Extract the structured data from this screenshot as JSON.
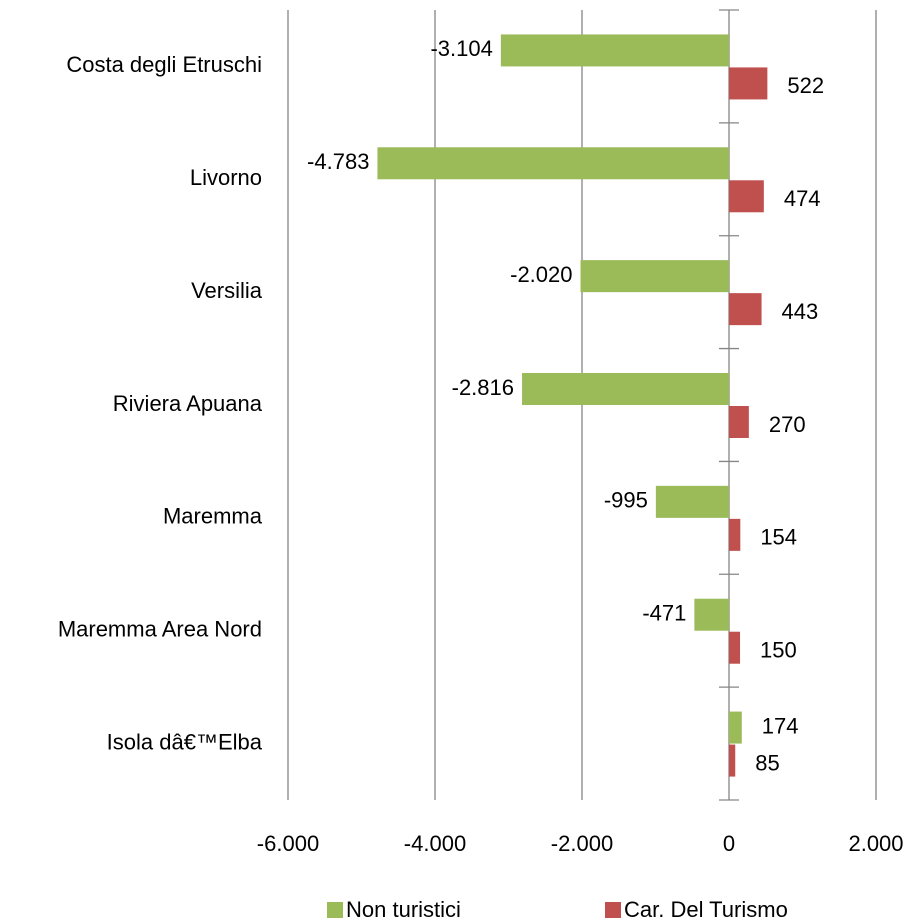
{
  "chart_data": {
    "type": "hbar",
    "categories": [
      "Costa degli Etruschi",
      "Livorno",
      "Versilia",
      "Riviera Apuana",
      "Maremma",
      "Maremma Area Nord",
      "Isola dâ€™Elba"
    ],
    "series": [
      {
        "name": "Non turistici",
        "color": "#9bbb59",
        "values": [
          -3104,
          -4783,
          -2020,
          -2816,
          -995,
          -471,
          174
        ],
        "value_labels": [
          "-3.104",
          "-4.783",
          "-2.020",
          "-2.816",
          "-995",
          "-471",
          "174"
        ]
      },
      {
        "name": "Car. Del Turismo",
        "color": "#c0504d",
        "values": [
          522,
          474,
          443,
          270,
          154,
          150,
          85
        ],
        "value_labels": [
          "522",
          "474",
          "443",
          "270",
          "154",
          "150",
          "85"
        ]
      }
    ],
    "xlim": [
      -6000,
      2000
    ],
    "xticks": [
      {
        "value": -6000,
        "label": "-6.000"
      },
      {
        "value": -4000,
        "label": "-4.000"
      },
      {
        "value": -2000,
        "label": "-2.000"
      },
      0,
      {
        "value": 2000,
        "label": "2.000"
      }
    ],
    "grid": true,
    "legend": "bottom"
  }
}
